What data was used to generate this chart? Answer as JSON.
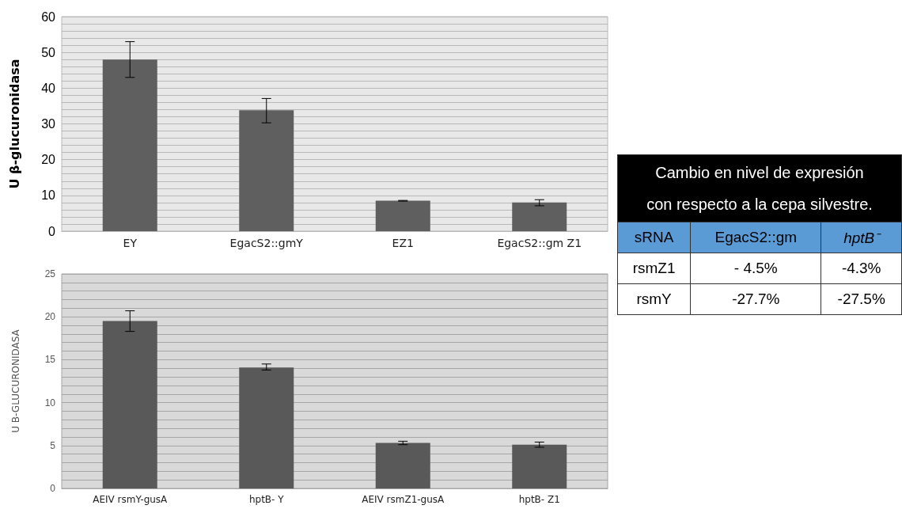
{
  "chart_data": [
    {
      "type": "bar",
      "ylabel": "U β-glucuronidasa",
      "categories": [
        "EY",
        "EgacS2::gmY",
        "EZ1",
        "EgacS2::gm Z1"
      ],
      "values": [
        48,
        33.8,
        8.5,
        8
      ],
      "errors": [
        [
          43,
          53
        ],
        [
          30.3,
          37.1
        ],
        [
          8.4,
          8.6
        ],
        [
          7.1,
          8.8
        ]
      ],
      "color": "#5f5f5f",
      "ylim": [
        0,
        60
      ],
      "yticks": [
        0,
        {
          "value": 2,
          "label": null
        },
        {
          "value": 4,
          "label": null
        },
        {
          "value": 6,
          "label": null
        },
        {
          "value": 8,
          "label": null
        },
        10,
        {
          "value": 12,
          "label": null
        },
        {
          "value": 14,
          "label": null
        },
        {
          "value": 16,
          "label": null
        },
        {
          "value": 18,
          "label": null
        },
        20,
        {
          "value": 22,
          "label": null
        },
        {
          "value": 24,
          "label": null
        },
        {
          "value": 26,
          "label": null
        },
        {
          "value": 28,
          "label": null
        },
        30,
        {
          "value": 32,
          "label": null
        },
        {
          "value": 34,
          "label": null
        },
        {
          "value": 36,
          "label": null
        },
        {
          "value": 38,
          "label": null
        },
        40,
        {
          "value": 42,
          "label": null
        },
        {
          "value": 44,
          "label": null
        },
        {
          "value": 46,
          "label": null
        },
        {
          "value": 48,
          "label": null
        },
        50,
        {
          "value": 52,
          "label": null
        },
        {
          "value": 54,
          "label": null
        },
        {
          "value": 56,
          "label": null
        },
        {
          "value": 58,
          "label": null
        },
        60
      ],
      "grid": "y"
    },
    {
      "type": "bar",
      "ylabel": "U B-GLUCURONIDASA",
      "categories": [
        "AEIV rsmY-gusA",
        "hptB- Y",
        "AEIV rsmZ1-gusA",
        "hptB- Z1"
      ],
      "values": [
        19.5,
        14.1,
        5.3,
        5.1
      ],
      "errors": [
        [
          18.3,
          20.7
        ],
        [
          13.8,
          14.5
        ],
        [
          5.1,
          5.5
        ],
        [
          4.8,
          5.4
        ]
      ],
      "color": "#595959",
      "ylim": [
        0,
        25
      ],
      "yticks": [
        0,
        {
          "value": 1,
          "label": null
        },
        {
          "value": 2,
          "label": null
        },
        {
          "value": 3,
          "label": null
        },
        {
          "value": 4,
          "label": null
        },
        5,
        {
          "value": 6,
          "label": null
        },
        {
          "value": 7,
          "label": null
        },
        {
          "value": 8,
          "label": null
        },
        {
          "value": 9,
          "label": null
        },
        10,
        {
          "value": 11,
          "label": null
        },
        {
          "value": 12,
          "label": null
        },
        {
          "value": 13,
          "label": null
        },
        {
          "value": 14,
          "label": null
        },
        15,
        {
          "value": 16,
          "label": null
        },
        {
          "value": 17,
          "label": null
        },
        {
          "value": 18,
          "label": null
        },
        {
          "value": 19,
          "label": null
        },
        20,
        {
          "value": 21,
          "label": null
        },
        {
          "value": 22,
          "label": null
        },
        {
          "value": 23,
          "label": null
        },
        {
          "value": 24,
          "label": null
        },
        25
      ],
      "grid": "y"
    },
    {
      "type": "other",
      "title": "Cambio en nivel de expresión con respecto a la cepa silvestre.",
      "annotations": [
        "sRNA",
        "EgacS2::gm",
        "hptB⁻",
        "rsmZ1",
        "- 4.5%",
        "-4.3%",
        "rsmY",
        "-27.7%",
        "-27.5%"
      ]
    }
  ]
}
